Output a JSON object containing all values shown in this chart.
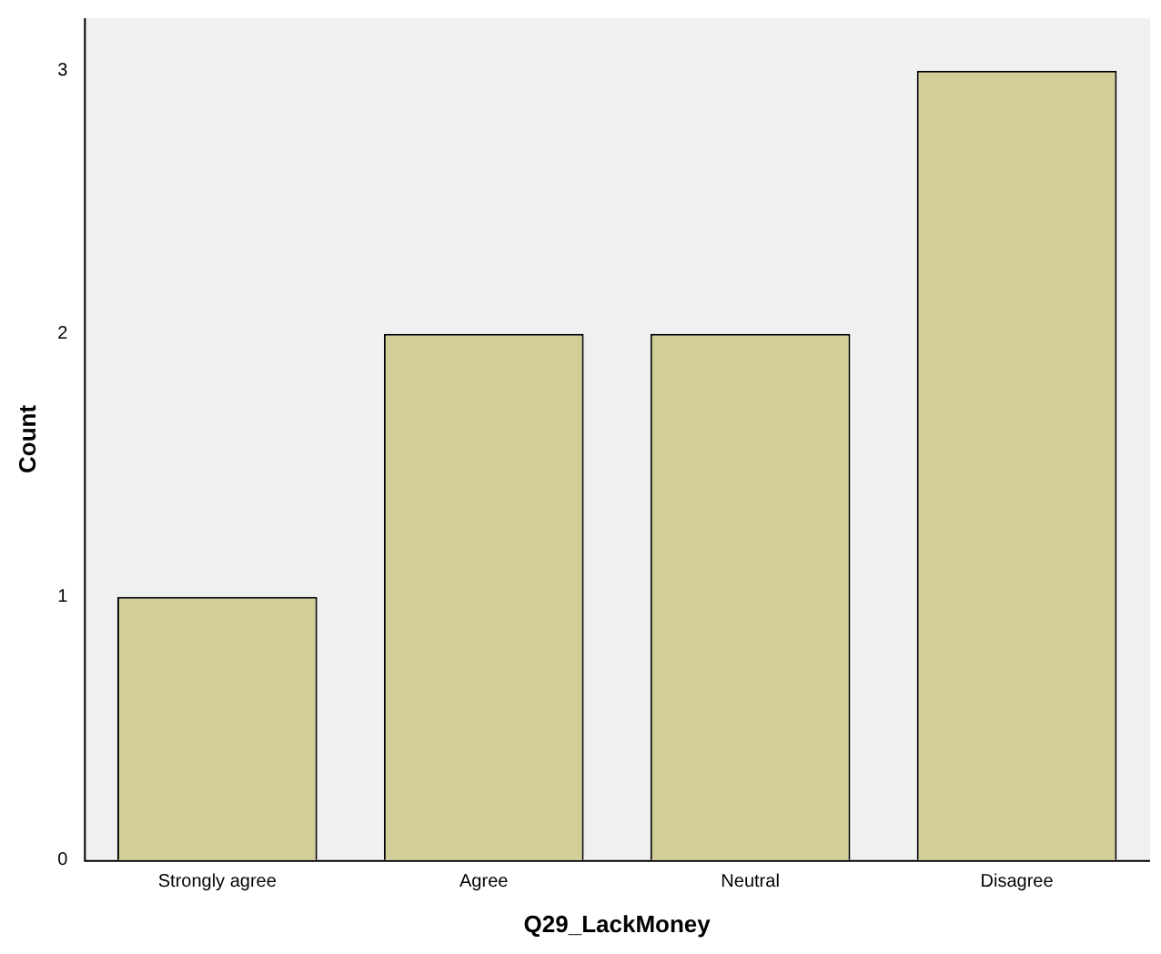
{
  "chart_data": {
    "type": "bar",
    "xlabel": "Q29_LackMoney",
    "ylabel": "Count",
    "categories": [
      "Strongly agree",
      "Agree",
      "Neutral",
      "Disagree"
    ],
    "values": [
      1,
      2,
      2,
      3
    ],
    "color": "#d3ce97",
    "ylim": [
      0,
      3.2
    ],
    "yticks": [
      0,
      1,
      2,
      3
    ],
    "grid": false,
    "legend": false
  }
}
